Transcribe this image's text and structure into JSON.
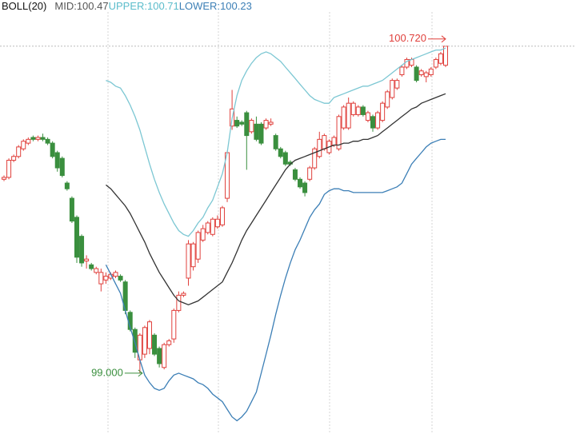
{
  "chart_data": {
    "type": "candlestick",
    "indicator": "BOLL(20)",
    "ylim": [
      98.68,
      100.9
    ],
    "up_color": "#e0403c",
    "down_color": "#3a8f3e",
    "candles": {
      "open": [
        100.02,
        100.03,
        100.12,
        100.14,
        100.18,
        100.21,
        100.24,
        100.23,
        100.24,
        100.23,
        100.21,
        100.16,
        100.13,
        100.0,
        99.92,
        99.82,
        99.72,
        99.59,
        99.57,
        99.53,
        99.47,
        99.49,
        99.5,
        99.51,
        99.51,
        99.48,
        99.32,
        99.23,
        99.07,
        99.1,
        99.13,
        99.2,
        99.13,
        99.03,
        99.15,
        99.18,
        99.33,
        99.41,
        99.5,
        99.56,
        99.6,
        99.7,
        99.74,
        99.73,
        99.77,
        99.78,
        99.92,
        100.3,
        100.33,
        100.32,
        100.37,
        100.27,
        100.31,
        100.31,
        100.29,
        100.31,
        100.25,
        100.18,
        100.16,
        100.11,
        100.07,
        100.02,
        100.0,
        100.02,
        100.08,
        100.14,
        100.18,
        100.16,
        100.2,
        100.18,
        100.29,
        100.29,
        100.36,
        100.36,
        100.4,
        100.33,
        100.35,
        100.29,
        100.33,
        100.4,
        100.45,
        100.5,
        100.57,
        100.61,
        100.62,
        100.61,
        100.57,
        100.56,
        100.57,
        100.61,
        100.63,
        100.62
      ],
      "high": [
        100.04,
        100.13,
        100.15,
        100.2,
        100.23,
        100.24,
        100.25,
        100.25,
        100.26,
        100.24,
        100.22,
        100.17,
        100.14,
        100.01,
        99.93,
        99.83,
        99.73,
        99.62,
        99.58,
        99.56,
        99.55,
        99.53,
        99.53,
        99.54,
        99.52,
        99.49,
        99.33,
        99.24,
        99.21,
        99.25,
        99.28,
        99.21,
        99.14,
        99.16,
        99.18,
        99.34,
        99.43,
        99.43,
        99.7,
        99.69,
        99.75,
        99.78,
        99.8,
        99.82,
        99.83,
        99.88,
        100.17,
        100.49,
        100.35,
        100.33,
        100.38,
        100.34,
        100.35,
        100.32,
        100.34,
        100.34,
        100.26,
        100.19,
        100.17,
        100.12,
        100.08,
        100.03,
        100.01,
        100.09,
        100.19,
        100.27,
        100.26,
        100.23,
        100.25,
        100.36,
        100.41,
        100.45,
        100.43,
        100.41,
        100.41,
        100.38,
        100.36,
        100.38,
        100.43,
        100.49,
        100.55,
        100.55,
        100.62,
        100.66,
        100.66,
        100.62,
        100.6,
        100.59,
        100.61,
        100.66,
        100.69,
        100.72
      ],
      "low": [
        100.01,
        100.02,
        100.11,
        100.13,
        100.17,
        100.2,
        100.22,
        100.22,
        100.22,
        100.2,
        100.13,
        100.06,
        100.03,
        99.96,
        99.79,
        99.58,
        99.56,
        99.55,
        99.54,
        99.52,
        99.43,
        99.47,
        99.49,
        99.5,
        99.48,
        99.31,
        99.22,
        99.08,
        99.0,
        99.08,
        99.1,
        99.09,
        99.03,
        99.02,
        99.14,
        99.16,
        99.32,
        99.4,
        99.46,
        99.54,
        99.58,
        99.69,
        99.73,
        99.72,
        99.76,
        99.77,
        99.9,
        100.28,
        100.29,
        100.3,
        100.07,
        100.26,
        100.22,
        100.2,
        100.28,
        100.3,
        100.17,
        100.13,
        100.09,
        100.09,
        100.01,
        99.97,
        99.93,
        100.01,
        100.07,
        100.13,
        100.17,
        100.15,
        100.19,
        100.17,
        100.28,
        100.28,
        100.35,
        100.35,
        100.35,
        100.32,
        100.27,
        100.28,
        100.32,
        100.39,
        100.44,
        100.49,
        100.56,
        100.6,
        100.61,
        100.53,
        100.56,
        100.53,
        100.56,
        100.6,
        100.62,
        100.61
      ],
      "close": [
        100.03,
        100.12,
        100.14,
        100.19,
        100.22,
        100.23,
        100.23,
        100.24,
        100.23,
        100.21,
        100.14,
        100.08,
        100.04,
        99.97,
        99.8,
        99.61,
        99.58,
        99.6,
        99.55,
        99.55,
        99.53,
        99.51,
        99.52,
        99.53,
        99.49,
        99.33,
        99.23,
        99.11,
        99.2,
        99.24,
        99.27,
        99.1,
        99.05,
        99.15,
        99.17,
        99.33,
        99.41,
        99.42,
        99.68,
        99.68,
        99.74,
        99.76,
        99.79,
        99.81,
        99.81,
        99.87,
        100.16,
        100.39,
        100.3,
        100.31,
        100.25,
        100.33,
        100.23,
        100.21,
        100.33,
        100.32,
        100.18,
        100.14,
        100.1,
        100.1,
        100.02,
        99.98,
        99.95,
        100.08,
        100.18,
        100.23,
        100.25,
        100.22,
        100.24,
        100.35,
        100.4,
        100.42,
        100.42,
        100.4,
        100.36,
        100.37,
        100.29,
        100.37,
        100.42,
        100.48,
        100.54,
        100.54,
        100.61,
        100.65,
        100.65,
        100.54,
        100.59,
        100.58,
        100.6,
        100.65,
        100.68,
        100.72
      ]
    },
    "series": [
      {
        "name": "MID:",
        "current": 100.47,
        "color": "#333333",
        "legend_color": "#555555",
        "values": [
          null,
          null,
          null,
          null,
          null,
          null,
          null,
          null,
          null,
          null,
          null,
          null,
          null,
          null,
          null,
          null,
          null,
          null,
          null,
          null,
          null,
          99.99,
          99.97,
          99.94,
          99.91,
          99.88,
          99.84,
          99.79,
          99.74,
          99.69,
          99.63,
          99.58,
          99.53,
          99.49,
          99.45,
          99.41,
          99.38,
          99.37,
          99.36,
          99.37,
          99.38,
          99.4,
          99.42,
          99.44,
          99.46,
          99.48,
          99.53,
          99.58,
          99.64,
          99.7,
          99.75,
          99.79,
          99.83,
          99.87,
          99.91,
          99.95,
          99.99,
          100.03,
          100.07,
          100.1,
          100.12,
          100.13,
          100.14,
          100.15,
          100.16,
          100.17,
          100.18,
          100.19,
          100.2,
          100.2,
          100.21,
          100.21,
          100.22,
          100.22,
          100.23,
          100.23,
          100.24,
          100.25,
          100.27,
          100.29,
          100.31,
          100.33,
          100.35,
          100.37,
          100.39,
          100.4,
          100.42,
          100.43,
          100.44,
          100.45,
          100.46,
          100.47
        ]
      },
      {
        "name": "UPPER:",
        "current": 100.71,
        "color": "#7cc7d3",
        "legend_color": "#5bbccb",
        "values": [
          null,
          null,
          null,
          null,
          null,
          null,
          null,
          null,
          null,
          null,
          null,
          null,
          null,
          null,
          null,
          null,
          null,
          null,
          null,
          null,
          null,
          100.54,
          100.53,
          100.51,
          100.5,
          100.46,
          100.41,
          100.35,
          100.28,
          100.19,
          100.1,
          100.02,
          99.95,
          99.89,
          99.84,
          99.79,
          99.75,
          99.73,
          99.72,
          99.75,
          99.79,
          99.82,
          99.87,
          99.91,
          99.98,
          100.05,
          100.16,
          100.34,
          100.46,
          100.54,
          100.59,
          100.63,
          100.66,
          100.68,
          100.69,
          100.68,
          100.66,
          100.64,
          100.61,
          100.58,
          100.55,
          100.52,
          100.49,
          100.46,
          100.44,
          100.43,
          100.42,
          100.42,
          100.45,
          100.46,
          100.47,
          100.48,
          100.49,
          100.5,
          100.51,
          100.51,
          100.52,
          100.53,
          100.54,
          100.56,
          100.58,
          100.6,
          100.62,
          100.64,
          100.65,
          100.66,
          100.67,
          100.68,
          100.69,
          100.7,
          100.7,
          100.71
        ]
      },
      {
        "name": "LOWER:",
        "current": 100.23,
        "color": "#3c7fb6",
        "legend_color": "#3c7fb6",
        "values": [
          null,
          null,
          null,
          null,
          null,
          null,
          null,
          null,
          null,
          null,
          null,
          null,
          null,
          null,
          null,
          null,
          null,
          null,
          null,
          null,
          null,
          99.57,
          99.52,
          99.47,
          99.42,
          99.33,
          99.24,
          99.16,
          99.07,
          98.99,
          98.95,
          98.92,
          98.91,
          98.92,
          98.96,
          98.99,
          99.0,
          98.99,
          98.98,
          98.97,
          98.95,
          98.94,
          98.92,
          98.89,
          98.87,
          98.85,
          98.81,
          98.77,
          98.75,
          98.77,
          98.8,
          98.85,
          98.9,
          99.0,
          99.1,
          99.2,
          99.31,
          99.41,
          99.5,
          99.58,
          99.65,
          99.7,
          99.76,
          99.82,
          99.86,
          99.89,
          99.94,
          99.96,
          99.97,
          99.97,
          99.96,
          99.96,
          99.95,
          99.95,
          99.95,
          99.95,
          99.95,
          99.95,
          99.95,
          99.96,
          99.97,
          99.98,
          100.0,
          100.05,
          100.1,
          100.13,
          100.16,
          100.19,
          100.21,
          100.22,
          100.23,
          100.23
        ]
      }
    ],
    "annotations": [
      {
        "value": 100.72,
        "label": "100.720"
      },
      {
        "value": 99,
        "label": "99.000"
      }
    ]
  }
}
